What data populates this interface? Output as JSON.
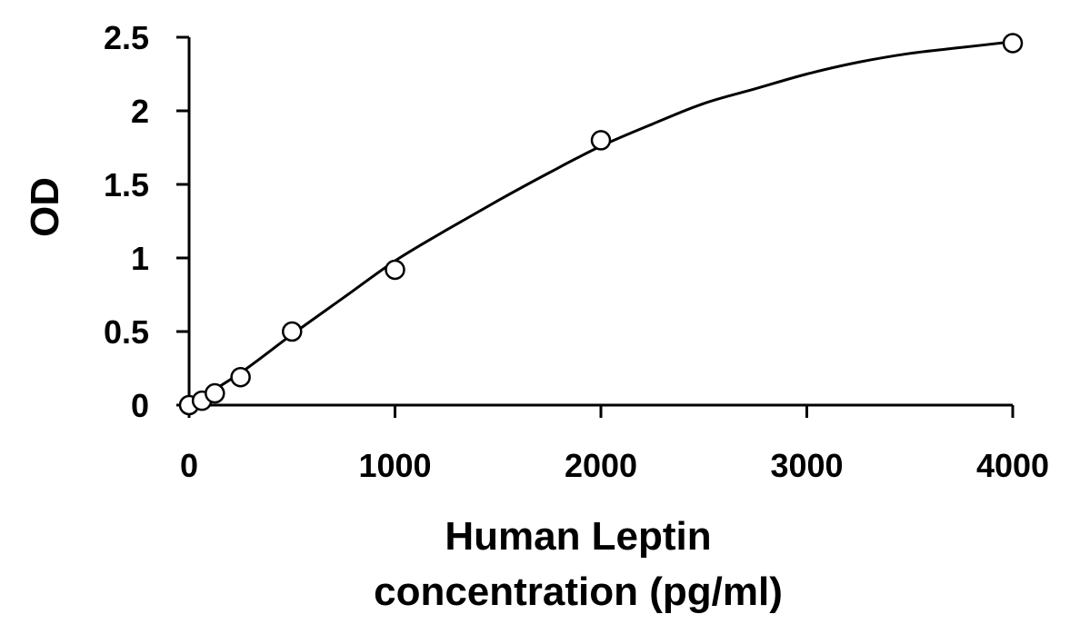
{
  "chart_data": {
    "type": "scatter",
    "title": "",
    "xlabel_lines": [
      "Human Leptin",
      "concentration (pg/ml)"
    ],
    "ylabel": "OD",
    "xlim": [
      0,
      4000
    ],
    "ylim": [
      0,
      2.5
    ],
    "x_ticks": [
      0,
      1000,
      2000,
      3000,
      4000
    ],
    "x_tick_labels": [
      "0",
      "1000",
      "2000",
      "3000",
      "4000"
    ],
    "y_ticks": [
      0,
      0.5,
      1,
      1.5,
      2,
      2.5
    ],
    "y_tick_labels": [
      "0",
      "0.5",
      "1",
      "1.5",
      "2",
      "2.5"
    ],
    "grid": false,
    "legend": "none",
    "series": [
      {
        "marker": "open-circle",
        "x": [
          0,
          62.5,
          125,
          250,
          500,
          1000,
          2000,
          4000
        ],
        "y": [
          0,
          0.03,
          0.08,
          0.19,
          0.5,
          0.92,
          1.8,
          2.46
        ]
      }
    ],
    "fit_curve": {
      "style": "smooth-line",
      "x": [
        0,
        250,
        500,
        750,
        1000,
        1250,
        1500,
        1750,
        2000,
        2250,
        2500,
        2750,
        3000,
        3250,
        3500,
        3750,
        4000
      ],
      "y": [
        0,
        0.22,
        0.48,
        0.73,
        0.98,
        1.19,
        1.39,
        1.58,
        1.76,
        1.91,
        2.05,
        2.15,
        2.25,
        2.33,
        2.39,
        2.43,
        2.47
      ]
    },
    "colors": {
      "axis": "#000000",
      "marker_stroke": "#000000",
      "marker_fill": "#ffffff",
      "curve": "#000000"
    }
  }
}
